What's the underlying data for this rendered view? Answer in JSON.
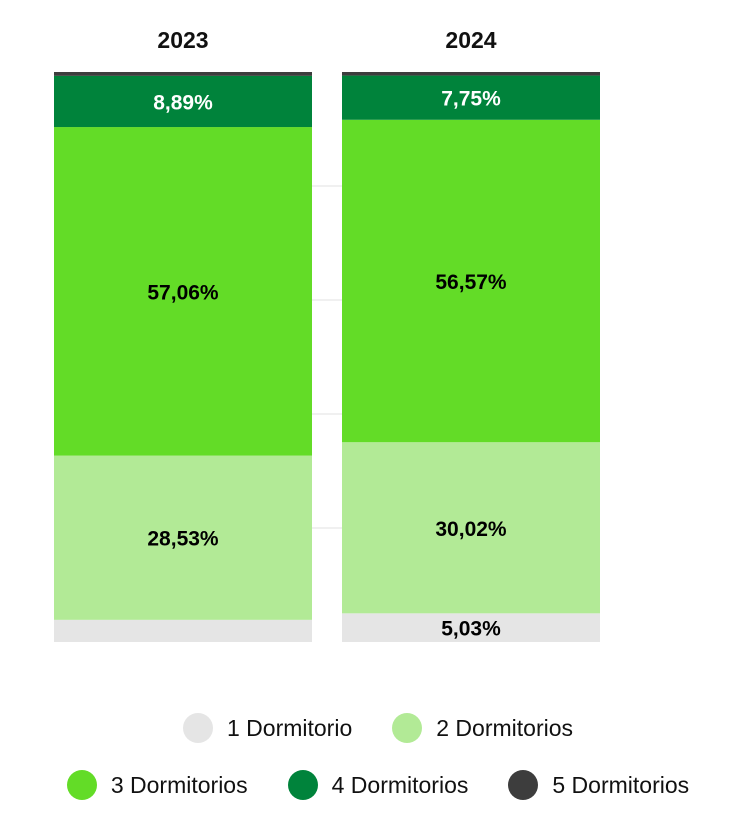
{
  "chart_data": {
    "type": "bar",
    "stacked": true,
    "orientation": "vertical",
    "normalized_to_percent": true,
    "categories": [
      "2023",
      "2024"
    ],
    "series": [
      {
        "name": "1 Dormitorio",
        "color": "#e5e5e5",
        "values": [
          3.85,
          5.03
        ],
        "labels": [
          "",
          "5,03%"
        ]
      },
      {
        "name": "2 Dormitorios",
        "color": "#b2ea96",
        "values": [
          28.53,
          30.02
        ],
        "labels": [
          "28,53%",
          "30,02%"
        ]
      },
      {
        "name": "3 Dormitorios",
        "color": "#63dc27",
        "values": [
          57.06,
          56.57
        ],
        "labels": [
          "57,06%",
          "56,57%"
        ]
      },
      {
        "name": "4 Dormitorios",
        "color": "#00833b",
        "values": [
          8.89,
          7.75
        ],
        "labels": [
          "8,89%",
          "7,75%"
        ]
      },
      {
        "name": "5 Dormitorios",
        "color": "#3d3d3d",
        "values": [
          0.67,
          0.63
        ],
        "labels": [
          "",
          ""
        ]
      }
    ],
    "label_colors": {
      "4 Dormitorios": "#ffffff"
    },
    "ylim": [
      0,
      100
    ],
    "grid": false,
    "legend_position": "bottom"
  },
  "legend": {
    "rows": [
      [
        "1 Dormitorio",
        "2 Dormitorios"
      ],
      [
        "3 Dormitorios",
        "4 Dormitorios",
        "5 Dormitorios"
      ]
    ]
  }
}
